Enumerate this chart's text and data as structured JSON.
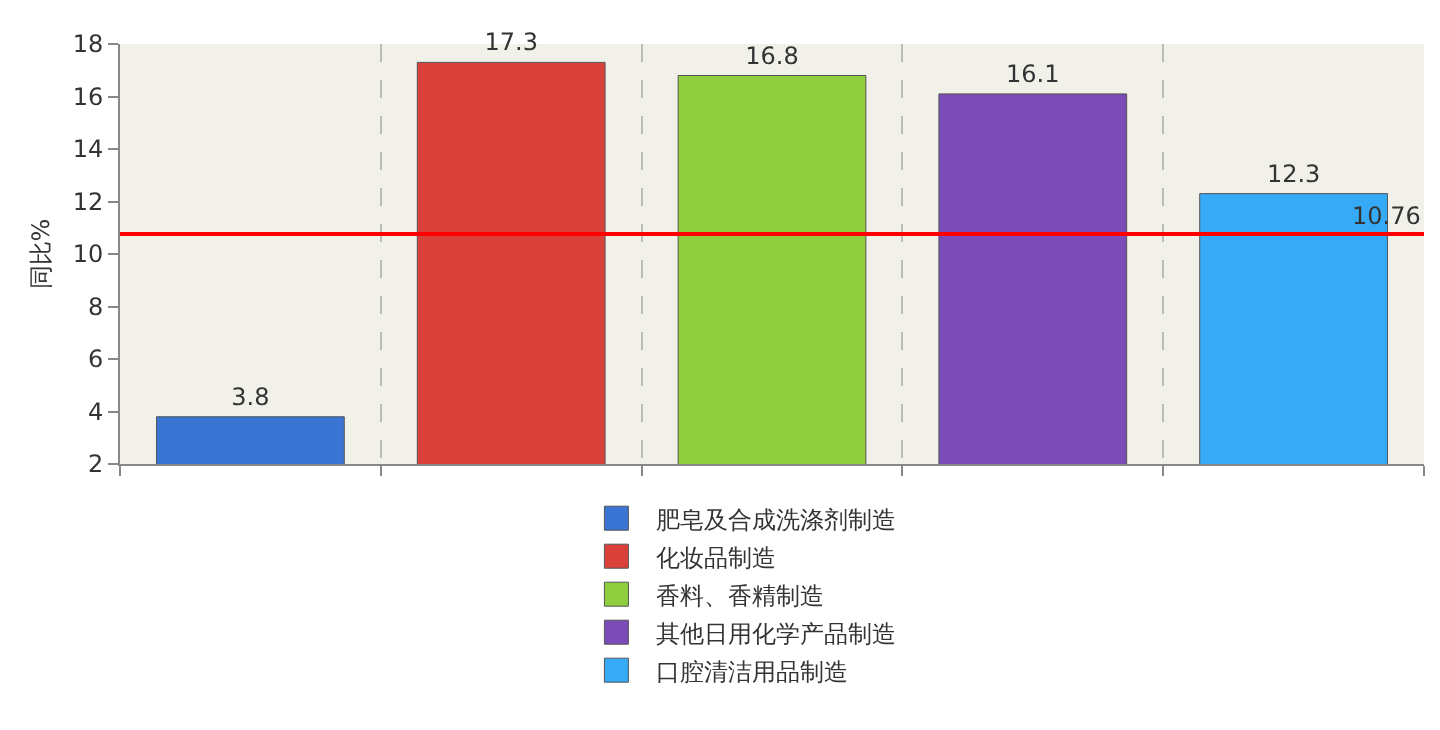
{
  "chart_data": {
    "type": "bar",
    "ylabel": "同比%",
    "categories": [
      null,
      null,
      null,
      null,
      null
    ],
    "series": [
      {
        "name": "肥皂及合成洗涤剂制造",
        "color": "#3a75d4",
        "values": [
          3.8,
          null,
          null,
          null,
          null
        ]
      },
      {
        "name": "化妆品制造",
        "color": "#d9413a",
        "values": [
          null,
          17.3,
          null,
          null,
          null
        ]
      },
      {
        "name": "香料、香精制造",
        "color": "#8fce3e",
        "values": [
          null,
          null,
          16.8,
          null,
          null
        ]
      },
      {
        "name": "其他日用化学产品制造",
        "color": "#7b4bb8",
        "values": [
          null,
          null,
          null,
          16.1,
          null
        ]
      },
      {
        "name": "口腔清洁用品制造",
        "color": "#36aaf7",
        "values": [
          null,
          null,
          null,
          null,
          12.3
        ]
      }
    ],
    "ylim": [
      2,
      18
    ],
    "yticks": [
      2,
      4,
      6,
      8,
      10,
      12,
      14,
      16,
      18
    ],
    "ref_lines": [
      {
        "axis": "y",
        "value": 10.76,
        "label": "10.76",
        "color": "#ff0000",
        "line_style": "solid"
      }
    ],
    "data_labels": true,
    "grid": "x",
    "legend": "bottom",
    "tick_labels": "y"
  }
}
